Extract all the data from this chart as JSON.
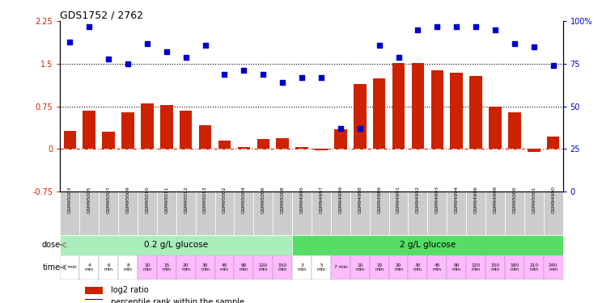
{
  "title": "GDS1752 / 2762",
  "samples": [
    "GSM95003",
    "GSM95005",
    "GSM95007",
    "GSM95009",
    "GSM95010",
    "GSM95011",
    "GSM95012",
    "GSM95013",
    "GSM95002",
    "GSM95004",
    "GSM95006",
    "GSM95008",
    "GSM94995",
    "GSM94997",
    "GSM94999",
    "GSM94988",
    "GSM94989",
    "GSM94991",
    "GSM94992",
    "GSM94993",
    "GSM94994",
    "GSM94996",
    "GSM94998",
    "GSM95000",
    "GSM95001",
    "GSM94990"
  ],
  "log2_ratio": [
    0.32,
    0.68,
    0.3,
    0.65,
    0.8,
    0.78,
    0.68,
    0.42,
    0.15,
    0.03,
    0.17,
    0.19,
    0.03,
    -0.02,
    0.35,
    1.15,
    1.25,
    1.52,
    1.52,
    1.38,
    1.35,
    1.28,
    0.75,
    0.65,
    -0.05,
    0.22
  ],
  "percentile_rank": [
    88,
    97,
    78,
    75,
    87,
    82,
    79,
    86,
    69,
    71,
    69,
    64,
    67,
    67,
    37,
    37,
    86,
    79,
    95,
    97,
    97,
    97,
    95,
    87,
    85,
    74
  ],
  "bar_color": "#cc2200",
  "dot_color": "#0000cc",
  "ylim_left": [
    -0.75,
    2.25
  ],
  "yticks_left": [
    -0.75,
    0.0,
    0.75,
    1.5,
    2.25
  ],
  "ytick_labels_left": [
    "-0.75",
    "0",
    "0.75",
    "1.5",
    "2.25"
  ],
  "hlines": [
    0.75,
    1.5
  ],
  "dose_groups": [
    {
      "label": "0.2 g/L glucose",
      "start": 0,
      "end": 12,
      "color": "#aaeebb"
    },
    {
      "label": "2 g/L glucose",
      "start": 12,
      "end": 26,
      "color": "#55dd66"
    }
  ],
  "time_labels": [
    "2 min",
    "4\nmin",
    "6\nmin",
    "8\nmin",
    "10\nmin",
    "15\nmin",
    "20\nmin",
    "30\nmin",
    "45\nmin",
    "90\nmin",
    "120\nmin",
    "150\nmin",
    "3\nmin",
    "5\nmin",
    "7 min",
    "10\nmin",
    "15\nmin",
    "20\nmin",
    "30\nmin",
    "45\nmin",
    "90\nmin",
    "120\nmin",
    "150\nmin",
    "180\nmin",
    "210\nmin",
    "240\nmin"
  ],
  "time_bg_colors": [
    "#ffffff",
    "#ffffff",
    "#ffffff",
    "#ffffff",
    "#ffbbff",
    "#ffbbff",
    "#ffbbff",
    "#ffbbff",
    "#ffbbff",
    "#ffbbff",
    "#ffbbff",
    "#ffbbff",
    "#ffffff",
    "#ffffff",
    "#ffbbff",
    "#ffbbff",
    "#ffbbff",
    "#ffbbff",
    "#ffbbff",
    "#ffbbff",
    "#ffbbff",
    "#ffbbff",
    "#ffbbff",
    "#ffbbff",
    "#ffbbff",
    "#ffbbff"
  ],
  "legend_red": "log2 ratio",
  "legend_blue": "percentile rank within the sample",
  "dose_label": "dose",
  "time_label": "time",
  "sample_box_color": "#cccccc",
  "arrow_color": "#888888"
}
